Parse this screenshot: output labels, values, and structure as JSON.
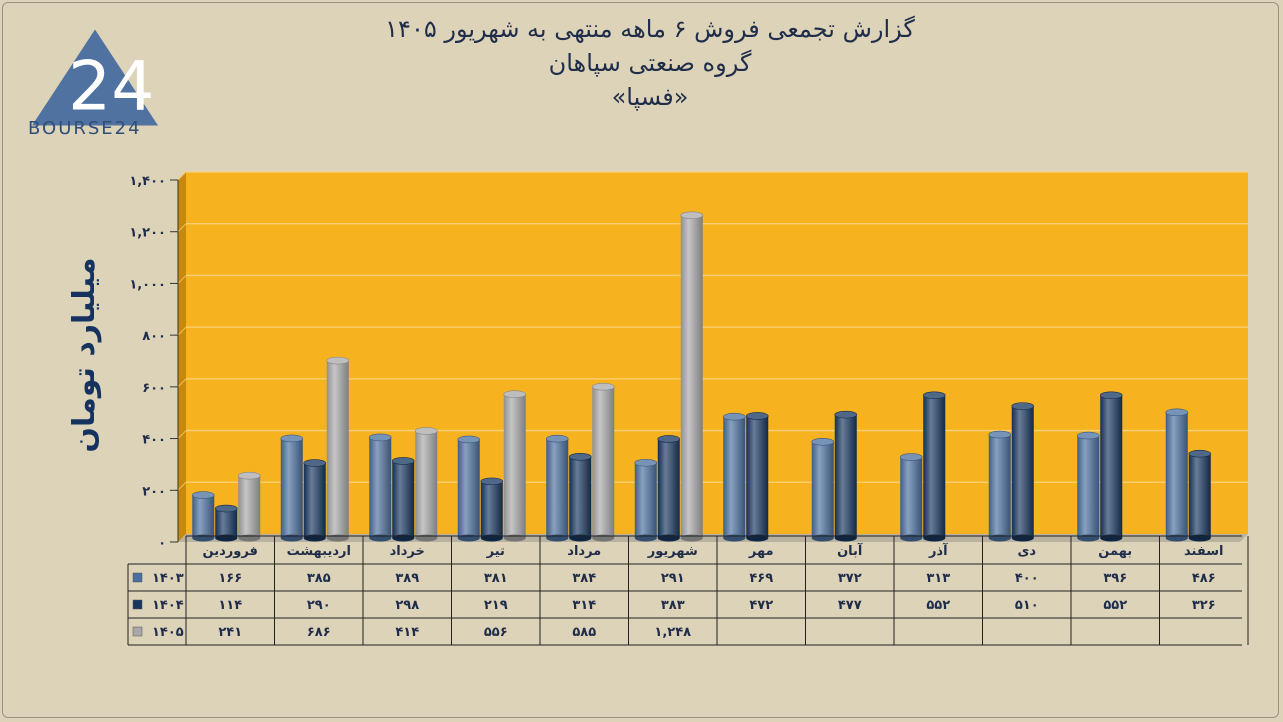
{
  "logo": {
    "text": "BOURSE24",
    "mark": "24"
  },
  "title": {
    "line1": "گزارش تجمعی فروش ۶ ماهه منتهی به شهریور ۱۴۰۵",
    "line2": "گروه صنعتی سپاهان",
    "line3": "«فسپا»"
  },
  "chart_data": {
    "type": "bar",
    "ylabel": "میلیارد تومان",
    "ylim": [
      0,
      1400
    ],
    "yticks": [
      "۰",
      "۲۰۰",
      "۴۰۰",
      "۶۰۰",
      "۸۰۰",
      "۱,۰۰۰",
      "۱,۲۰۰",
      "۱,۴۰۰"
    ],
    "categories": [
      "فروردین",
      "اردیبهشت",
      "خرداد",
      "تیر",
      "مرداد",
      "شهریور",
      "مهر",
      "آبان",
      "آذر",
      "دی",
      "بهمن",
      "اسفند"
    ],
    "series": [
      {
        "name": "۱۴۰۳",
        "color": "#4a6f9e",
        "values": [
          166,
          385,
          389,
          381,
          384,
          291,
          469,
          372,
          313,
          400,
          396,
          486
        ],
        "labels": [
          "۱۶۶",
          "۳۸۵",
          "۳۸۹",
          "۳۸۱",
          "۳۸۴",
          "۲۹۱",
          "۴۶۹",
          "۳۷۲",
          "۳۱۳",
          "۴۰۰",
          "۳۹۶",
          "۴۸۶"
        ]
      },
      {
        "name": "۱۴۰۴",
        "color": "#16365f",
        "values": [
          114,
          290,
          298,
          219,
          314,
          383,
          472,
          477,
          552,
          510,
          552,
          326
        ],
        "labels": [
          "۱۱۴",
          "۲۹۰",
          "۲۹۸",
          "۲۱۹",
          "۳۱۴",
          "۳۸۳",
          "۴۷۲",
          "۴۷۷",
          "۵۵۲",
          "۵۱۰",
          "۵۵۲",
          "۳۲۶"
        ]
      },
      {
        "name": "۱۴۰۵",
        "color": "#a8a8a8",
        "values": [
          241,
          686,
          414,
          556,
          585,
          1248,
          null,
          null,
          null,
          null,
          null,
          null
        ],
        "labels": [
          "۲۴۱",
          "۶۸۶",
          "۴۱۴",
          "۵۵۶",
          "۵۸۵",
          "۱,۲۴۸",
          "",
          "",
          "",
          "",
          "",
          ""
        ]
      }
    ],
    "plot_background": "#f7b31f",
    "grid": true,
    "legend": "data table below chart"
  }
}
